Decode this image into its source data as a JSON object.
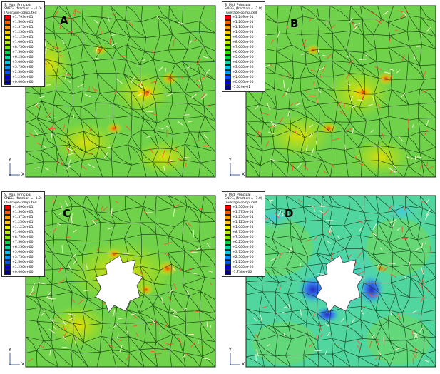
{
  "panels": [
    {
      "letter": "A",
      "legend_title": [
        "S, Max. Principal",
        "SNEG, (fraction = -1.0)",
        "(Average-computed"
      ],
      "values": [
        "+1.793e+01",
        "+1.500e+01",
        "+1.375e+01",
        "+1.250e+01",
        "+1.125e+01",
        "+1.000e+01",
        "+8.750e+00",
        "+7.500e+00",
        "+6.250e+00",
        "+5.000e+00",
        "+3.750e+00",
        "+2.500e+00",
        "+1.250e+00",
        "+0.000e+00"
      ]
    },
    {
      "letter": "B",
      "legend_title": [
        "S, Mid. Principal",
        "SNEG, (fraction = -1.0)",
        "(Average-computed"
      ],
      "values": [
        "+1.249e+01",
        "+1.200e+01",
        "+1.100e+01",
        "+1.000e+01",
        "+9.000e+00",
        "+8.000e+00",
        "+7.000e+00",
        "+6.000e+00",
        "+5.000e+00",
        "+4.000e+00",
        "+3.000e+00",
        "+2.000e+00",
        "+1.000e+00",
        "+0.000e+00",
        "-7.529e-01"
      ]
    },
    {
      "letter": "C",
      "legend_title": [
        "S, Max. Principal",
        "SNEG, (fraction = -1.0)",
        "(Average-computed"
      ],
      "values": [
        "+1.696e+01",
        "+1.500e+01",
        "+1.375e+01",
        "+1.250e+01",
        "+1.125e+01",
        "+1.000e+01",
        "+8.750e+00",
        "+7.500e+00",
        "+6.250e+00",
        "+5.000e+00",
        "+3.750e+00",
        "+2.500e+00",
        "+1.250e+00",
        "+0.000e+00"
      ]
    },
    {
      "letter": "D",
      "legend_title": [
        "S, Mid. Principal",
        "SNEG, (fraction = -1.0)",
        "(Average-computed"
      ],
      "values": [
        "+1.500e+01",
        "+1.375e+01",
        "+1.250e+01",
        "+1.125e+01",
        "+1.000e+01",
        "+8.750e+00",
        "+7.500e+00",
        "+6.250e+00",
        "+5.000e+00",
        "+3.750e+00",
        "+2.500e+00",
        "+1.250e+00",
        "+0.000e+00",
        "-1.738e+00"
      ]
    }
  ],
  "axis_labels": {
    "y": "Y",
    "x": "X"
  },
  "colors": {
    "contour_scale": [
      "#ff0000",
      "#ff5a00",
      "#ff9900",
      "#ffcc00",
      "#eeee00",
      "#b8ee00",
      "#7ae600",
      "#33dd00",
      "#00d444",
      "#00d8a0",
      "#00c8e0",
      "#0096ff",
      "#0050ff",
      "#0000d0",
      "#000080"
    ]
  }
}
